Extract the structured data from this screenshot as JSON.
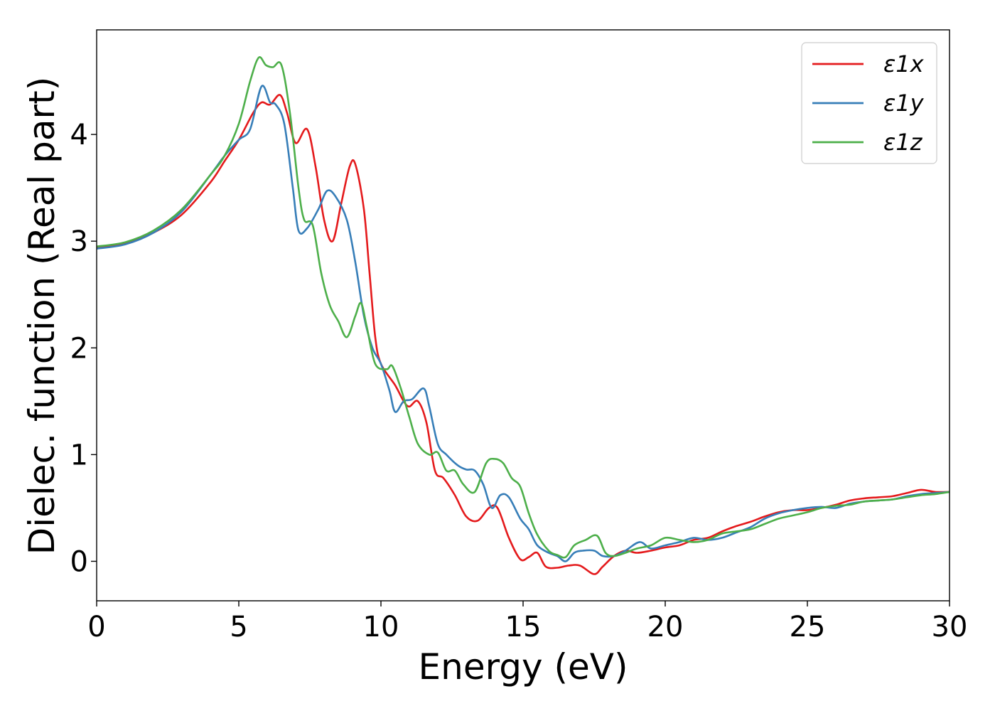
{
  "chart_data": {
    "type": "line",
    "title": "",
    "xlabel": "Energy (eV)",
    "ylabel": "Dielec. function (Real part)",
    "xlim": [
      0,
      30
    ],
    "ylim": [
      -0.37,
      4.98
    ],
    "xticks": [
      0,
      5,
      10,
      15,
      20,
      25,
      30
    ],
    "xtick_labels": [
      "0",
      "5",
      "10",
      "15",
      "20",
      "25",
      "30"
    ],
    "yticks": [
      0,
      1,
      2,
      3,
      4
    ],
    "ytick_labels": [
      "0",
      "1",
      "2",
      "3",
      "4"
    ],
    "grid": false,
    "legend_position": "top-right",
    "series": [
      {
        "name": "ε1x",
        "color": "#e41a1c",
        "points": [
          [
            0,
            2.94
          ],
          [
            1,
            2.98
          ],
          [
            2,
            3.08
          ],
          [
            3,
            3.25
          ],
          [
            4,
            3.55
          ],
          [
            4.5,
            3.75
          ],
          [
            5,
            3.95
          ],
          [
            5.5,
            4.2
          ],
          [
            5.8,
            4.3
          ],
          [
            6.1,
            4.28
          ],
          [
            6.45,
            4.37
          ],
          [
            6.7,
            4.2
          ],
          [
            7.0,
            3.92
          ],
          [
            7.4,
            4.05
          ],
          [
            7.7,
            3.7
          ],
          [
            8.0,
            3.2
          ],
          [
            8.3,
            3.0
          ],
          [
            8.6,
            3.35
          ],
          [
            8.9,
            3.7
          ],
          [
            9.1,
            3.72
          ],
          [
            9.4,
            3.3
          ],
          [
            9.6,
            2.7
          ],
          [
            9.8,
            2.1
          ],
          [
            10,
            1.85
          ],
          [
            10.5,
            1.65
          ],
          [
            10.8,
            1.5
          ],
          [
            11.0,
            1.45
          ],
          [
            11.3,
            1.5
          ],
          [
            11.6,
            1.3
          ],
          [
            11.9,
            0.85
          ],
          [
            12.2,
            0.78
          ],
          [
            12.6,
            0.62
          ],
          [
            13.0,
            0.42
          ],
          [
            13.4,
            0.38
          ],
          [
            13.8,
            0.5
          ],
          [
            14.1,
            0.5
          ],
          [
            14.5,
            0.22
          ],
          [
            14.9,
            0.02
          ],
          [
            15.2,
            0.04
          ],
          [
            15.5,
            0.08
          ],
          [
            15.8,
            -0.05
          ],
          [
            16.2,
            -0.06
          ],
          [
            16.6,
            -0.04
          ],
          [
            17.0,
            -0.04
          ],
          [
            17.5,
            -0.12
          ],
          [
            17.8,
            -0.05
          ],
          [
            18.2,
            0.05
          ],
          [
            18.6,
            0.1
          ],
          [
            19.0,
            0.08
          ],
          [
            19.5,
            0.1
          ],
          [
            20.0,
            0.13
          ],
          [
            20.5,
            0.15
          ],
          [
            21.0,
            0.2
          ],
          [
            21.5,
            0.22
          ],
          [
            22.0,
            0.28
          ],
          [
            22.5,
            0.33
          ],
          [
            23.0,
            0.37
          ],
          [
            23.5,
            0.42
          ],
          [
            24.0,
            0.46
          ],
          [
            24.5,
            0.48
          ],
          [
            25.0,
            0.48
          ],
          [
            25.5,
            0.5
          ],
          [
            26.0,
            0.53
          ],
          [
            26.5,
            0.57
          ],
          [
            27.0,
            0.59
          ],
          [
            27.5,
            0.6
          ],
          [
            28.0,
            0.61
          ],
          [
            28.5,
            0.64
          ],
          [
            29.0,
            0.67
          ],
          [
            29.5,
            0.65
          ],
          [
            30,
            0.65
          ]
        ]
      },
      {
        "name": "ε1y",
        "color": "#377eb8",
        "points": [
          [
            0,
            2.93
          ],
          [
            1,
            2.97
          ],
          [
            2,
            3.08
          ],
          [
            3,
            3.28
          ],
          [
            4,
            3.62
          ],
          [
            4.5,
            3.8
          ],
          [
            5,
            3.95
          ],
          [
            5.4,
            4.05
          ],
          [
            5.8,
            4.45
          ],
          [
            6.1,
            4.3
          ],
          [
            6.3,
            4.28
          ],
          [
            6.6,
            4.1
          ],
          [
            6.9,
            3.5
          ],
          [
            7.1,
            3.1
          ],
          [
            7.4,
            3.12
          ],
          [
            7.8,
            3.3
          ],
          [
            8.1,
            3.47
          ],
          [
            8.4,
            3.42
          ],
          [
            8.8,
            3.2
          ],
          [
            9.1,
            2.8
          ],
          [
            9.4,
            2.3
          ],
          [
            9.7,
            2.0
          ],
          [
            10,
            1.85
          ],
          [
            10.3,
            1.6
          ],
          [
            10.5,
            1.4
          ],
          [
            10.8,
            1.5
          ],
          [
            11.1,
            1.52
          ],
          [
            11.5,
            1.62
          ],
          [
            11.7,
            1.45
          ],
          [
            12.0,
            1.1
          ],
          [
            12.3,
            1.0
          ],
          [
            12.7,
            0.9
          ],
          [
            13.0,
            0.86
          ],
          [
            13.3,
            0.85
          ],
          [
            13.6,
            0.72
          ],
          [
            13.9,
            0.5
          ],
          [
            14.2,
            0.62
          ],
          [
            14.5,
            0.6
          ],
          [
            14.9,
            0.4
          ],
          [
            15.2,
            0.3
          ],
          [
            15.5,
            0.15
          ],
          [
            15.9,
            0.08
          ],
          [
            16.2,
            0.05
          ],
          [
            16.5,
            0.0
          ],
          [
            16.8,
            0.08
          ],
          [
            17.1,
            0.1
          ],
          [
            17.5,
            0.1
          ],
          [
            17.8,
            0.05
          ],
          [
            18.2,
            0.05
          ],
          [
            18.6,
            0.1
          ],
          [
            19.1,
            0.18
          ],
          [
            19.5,
            0.12
          ],
          [
            20.0,
            0.15
          ],
          [
            20.5,
            0.18
          ],
          [
            21.0,
            0.22
          ],
          [
            21.5,
            0.2
          ],
          [
            22.0,
            0.22
          ],
          [
            22.5,
            0.27
          ],
          [
            23.0,
            0.32
          ],
          [
            23.5,
            0.4
          ],
          [
            24.0,
            0.45
          ],
          [
            24.5,
            0.48
          ],
          [
            25.0,
            0.5
          ],
          [
            25.5,
            0.51
          ],
          [
            26.0,
            0.5
          ],
          [
            26.5,
            0.54
          ],
          [
            27.0,
            0.56
          ],
          [
            27.5,
            0.57
          ],
          [
            28.0,
            0.58
          ],
          [
            28.5,
            0.61
          ],
          [
            29.0,
            0.63
          ],
          [
            29.5,
            0.64
          ],
          [
            30,
            0.65
          ]
        ]
      },
      {
        "name": "ε1z",
        "color": "#4daf4a",
        "points": [
          [
            0,
            2.95
          ],
          [
            1,
            2.99
          ],
          [
            2,
            3.1
          ],
          [
            3,
            3.3
          ],
          [
            4,
            3.62
          ],
          [
            4.5,
            3.8
          ],
          [
            5,
            4.1
          ],
          [
            5.4,
            4.5
          ],
          [
            5.7,
            4.72
          ],
          [
            5.95,
            4.65
          ],
          [
            6.2,
            4.63
          ],
          [
            6.5,
            4.65
          ],
          [
            6.8,
            4.2
          ],
          [
            7.1,
            3.5
          ],
          [
            7.3,
            3.2
          ],
          [
            7.6,
            3.15
          ],
          [
            7.9,
            2.7
          ],
          [
            8.2,
            2.4
          ],
          [
            8.5,
            2.25
          ],
          [
            8.8,
            2.1
          ],
          [
            9.1,
            2.3
          ],
          [
            9.3,
            2.42
          ],
          [
            9.5,
            2.2
          ],
          [
            9.8,
            1.85
          ],
          [
            10.2,
            1.8
          ],
          [
            10.4,
            1.83
          ],
          [
            10.7,
            1.62
          ],
          [
            11.0,
            1.35
          ],
          [
            11.3,
            1.1
          ],
          [
            11.7,
            1.0
          ],
          [
            12.0,
            1.02
          ],
          [
            12.3,
            0.85
          ],
          [
            12.6,
            0.85
          ],
          [
            12.9,
            0.72
          ],
          [
            13.3,
            0.65
          ],
          [
            13.7,
            0.92
          ],
          [
            14.0,
            0.96
          ],
          [
            14.3,
            0.92
          ],
          [
            14.6,
            0.78
          ],
          [
            14.9,
            0.7
          ],
          [
            15.2,
            0.45
          ],
          [
            15.5,
            0.25
          ],
          [
            15.9,
            0.1
          ],
          [
            16.2,
            0.06
          ],
          [
            16.5,
            0.04
          ],
          [
            16.8,
            0.15
          ],
          [
            17.2,
            0.2
          ],
          [
            17.6,
            0.24
          ],
          [
            17.9,
            0.08
          ],
          [
            18.2,
            0.05
          ],
          [
            18.6,
            0.08
          ],
          [
            19.0,
            0.12
          ],
          [
            19.5,
            0.15
          ],
          [
            20.0,
            0.22
          ],
          [
            20.5,
            0.2
          ],
          [
            21.0,
            0.18
          ],
          [
            21.5,
            0.2
          ],
          [
            22.0,
            0.26
          ],
          [
            22.5,
            0.28
          ],
          [
            23.0,
            0.3
          ],
          [
            23.5,
            0.35
          ],
          [
            24.0,
            0.4
          ],
          [
            24.5,
            0.43
          ],
          [
            25.0,
            0.46
          ],
          [
            25.5,
            0.5
          ],
          [
            26.0,
            0.52
          ],
          [
            26.5,
            0.53
          ],
          [
            27.0,
            0.56
          ],
          [
            27.5,
            0.57
          ],
          [
            28.0,
            0.58
          ],
          [
            28.5,
            0.6
          ],
          [
            29.0,
            0.62
          ],
          [
            29.5,
            0.63
          ],
          [
            30,
            0.65
          ]
        ]
      }
    ]
  }
}
